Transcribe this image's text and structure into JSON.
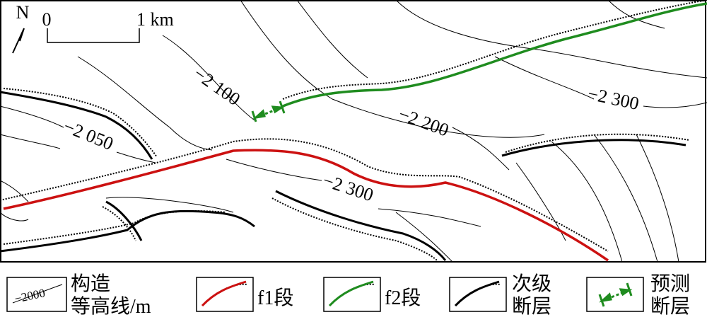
{
  "map": {
    "north": "N",
    "scale": {
      "start": "0",
      "end": "1 km"
    },
    "contour_labels": [
      "−2 100",
      "−2 050",
      "−2 200",
      "−2 300",
      "−2 300"
    ]
  },
  "legend": {
    "items": [
      {
        "sample": "−2000",
        "label_lines": [
          "构造",
          "等高线/m"
        ]
      },
      {
        "label_lines": [
          "f1段"
        ]
      },
      {
        "label_lines": [
          "f2段"
        ]
      },
      {
        "label_lines": [
          "次级",
          "断层"
        ]
      },
      {
        "label_lines": [
          "预测",
          "断层"
        ]
      }
    ]
  }
}
